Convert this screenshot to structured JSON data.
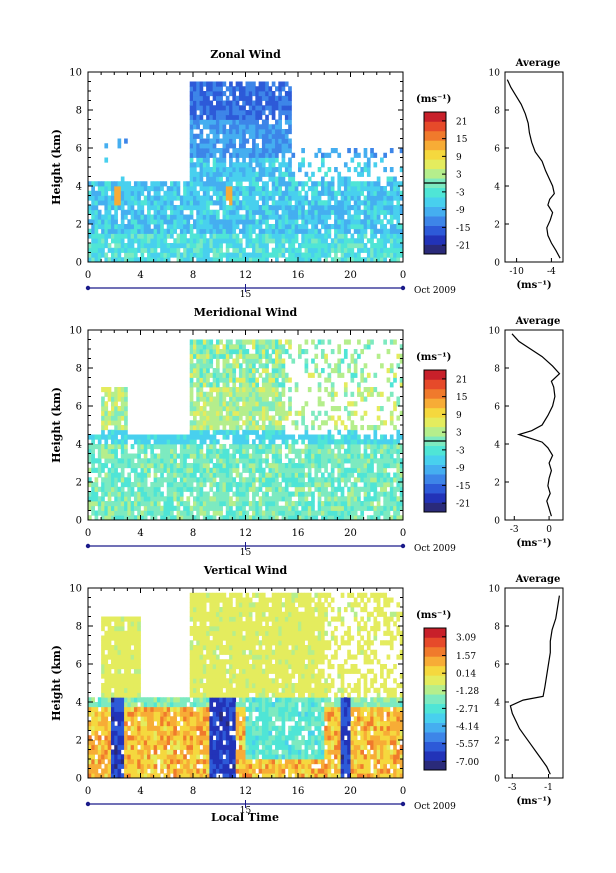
{
  "figure": {
    "xlabel": "Local Time",
    "units_label": "(ms⁻¹)",
    "date_label": "Oct 2009",
    "day_marker": "15",
    "average_title": "Average",
    "average_xlabel": "(ms⁻¹)",
    "colorscale": [
      "#2a2a7a",
      "#2233b8",
      "#2d5ad8",
      "#3d85e8",
      "#45aef0",
      "#48d0ee",
      "#4fe5d6",
      "#7deac0",
      "#b5ee8c",
      "#e4ec5e",
      "#f5d83e",
      "#f7ac36",
      "#f07a2c",
      "#e64a2a",
      "#c8202a"
    ]
  },
  "chart_data": [
    {
      "type": "heatmap",
      "title": "Zonal Wind",
      "xlabel": "",
      "ylabel": "Height (km)",
      "xlim": [
        0,
        24
      ],
      "ylim": [
        0,
        10
      ],
      "x_ticks": [
        "0",
        "4",
        "8",
        "12",
        "16",
        "20",
        "0"
      ],
      "y_ticks": [
        "0",
        "2",
        "4",
        "6",
        "8",
        "10"
      ],
      "colorbar_ticks": [
        "21",
        "15",
        "9",
        "3",
        "-3",
        "-9",
        "-15",
        "-21"
      ],
      "colorbar_range": [
        -24,
        24
      ],
      "zero_line": 0,
      "average": {
        "title": "Average",
        "xlim": [
          -12,
          -2
        ],
        "x_ticks": [
          "-10",
          "-4"
        ],
        "y_ticks": [
          "0",
          "2",
          "4",
          "6",
          "8",
          "10"
        ],
        "profile": [
          [
            -2.5,
            0.2
          ],
          [
            -3.2,
            0.6
          ],
          [
            -4.0,
            1.0
          ],
          [
            -4.6,
            1.4
          ],
          [
            -4.8,
            1.8
          ],
          [
            -4.2,
            2.2
          ],
          [
            -3.8,
            2.6
          ],
          [
            -4.6,
            3.0
          ],
          [
            -4.3,
            3.3
          ],
          [
            -3.5,
            3.6
          ],
          [
            -3.8,
            4.0
          ],
          [
            -4.4,
            4.4
          ],
          [
            -5.0,
            4.8
          ],
          [
            -5.6,
            5.3
          ],
          [
            -6.8,
            5.8
          ],
          [
            -7.4,
            6.3
          ],
          [
            -7.8,
            6.8
          ],
          [
            -8.0,
            7.3
          ],
          [
            -8.5,
            7.8
          ],
          [
            -9.2,
            8.3
          ],
          [
            -10.2,
            8.8
          ],
          [
            -11.0,
            9.2
          ],
          [
            -11.6,
            9.6
          ]
        ]
      }
    },
    {
      "type": "heatmap",
      "title": "Meridional Wind",
      "xlabel": "",
      "ylabel": "Height (km)",
      "xlim": [
        0,
        24
      ],
      "ylim": [
        0,
        10
      ],
      "x_ticks": [
        "0",
        "4",
        "8",
        "12",
        "16",
        "20",
        "0"
      ],
      "y_ticks": [
        "0",
        "2",
        "4",
        "6",
        "8",
        "10"
      ],
      "colorbar_ticks": [
        "21",
        "15",
        "9",
        "3",
        "-3",
        "-9",
        "-15",
        "-21"
      ],
      "colorbar_range": [
        -24,
        24
      ],
      "zero_line": 0,
      "average": {
        "title": "Average",
        "xlim": [
          -3.8,
          1.2
        ],
        "x_ticks": [
          "-3",
          "0"
        ],
        "y_ticks": [
          "0",
          "2",
          "4",
          "6",
          "8",
          "10"
        ],
        "profile": [
          [
            0.2,
            0.2
          ],
          [
            0.0,
            0.6
          ],
          [
            -0.2,
            1.0
          ],
          [
            0.1,
            1.4
          ],
          [
            -0.1,
            1.8
          ],
          [
            0.0,
            2.2
          ],
          [
            0.2,
            2.6
          ],
          [
            0.0,
            3.0
          ],
          [
            0.3,
            3.4
          ],
          [
            -0.1,
            3.8
          ],
          [
            -0.6,
            4.1
          ],
          [
            -2.6,
            4.5
          ],
          [
            -1.5,
            4.7
          ],
          [
            -0.6,
            5.0
          ],
          [
            -0.1,
            5.5
          ],
          [
            0.3,
            6.0
          ],
          [
            0.5,
            6.5
          ],
          [
            0.4,
            7.0
          ],
          [
            0.2,
            7.3
          ],
          [
            0.9,
            7.7
          ],
          [
            0.3,
            8.1
          ],
          [
            -0.6,
            8.6
          ],
          [
            -1.6,
            9.0
          ],
          [
            -2.6,
            9.4
          ],
          [
            -3.2,
            9.8
          ]
        ]
      }
    },
    {
      "type": "heatmap",
      "title": "Vertical Wind",
      "xlabel": "Local Time",
      "ylabel": "Height (km)",
      "xlim": [
        0,
        24
      ],
      "ylim": [
        0,
        10
      ],
      "x_ticks": [
        "0",
        "4",
        "8",
        "12",
        "16",
        "20",
        "0"
      ],
      "y_ticks": [
        "0",
        "2",
        "4",
        "6",
        "8",
        "10"
      ],
      "colorbar_ticks": [
        "3.09",
        "1.57",
        "0.14",
        "-1.28",
        "-2.71",
        "-4.14",
        "-5.57",
        "-7.00"
      ],
      "colorbar_range": [
        -7.7,
        3.8
      ],
      "zero_line": null,
      "average": {
        "title": "Average",
        "xlim": [
          -3.4,
          -0.2
        ],
        "x_ticks": [
          "-3",
          "-1"
        ],
        "y_ticks": [
          "0",
          "2",
          "4",
          "6",
          "8",
          "10"
        ],
        "profile": [
          [
            -0.9,
            0.2
          ],
          [
            -1.1,
            0.6
          ],
          [
            -1.4,
            1.0
          ],
          [
            -1.7,
            1.4
          ],
          [
            -2.0,
            1.8
          ],
          [
            -2.3,
            2.2
          ],
          [
            -2.6,
            2.6
          ],
          [
            -2.8,
            3.0
          ],
          [
            -3.0,
            3.4
          ],
          [
            -3.1,
            3.8
          ],
          [
            -2.4,
            4.1
          ],
          [
            -1.3,
            4.3
          ],
          [
            -1.2,
            4.8
          ],
          [
            -1.1,
            5.4
          ],
          [
            -1.0,
            6.0
          ],
          [
            -0.9,
            6.6
          ],
          [
            -0.9,
            7.2
          ],
          [
            -0.8,
            7.8
          ],
          [
            -0.6,
            8.4
          ],
          [
            -0.5,
            9.0
          ],
          [
            -0.4,
            9.6
          ]
        ]
      }
    }
  ]
}
